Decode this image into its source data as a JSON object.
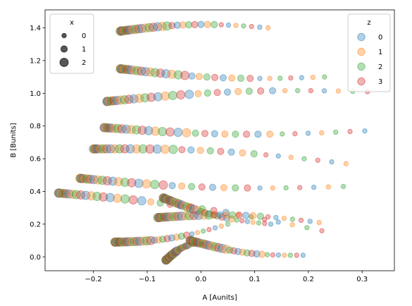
{
  "chart_data": {
    "type": "scatter",
    "title": "",
    "xlabel": "A [Aunits]",
    "ylabel": "B [Bunits]",
    "xlim": [
      -0.29,
      0.36
    ],
    "ylim": [
      -0.085,
      1.51
    ],
    "x_ticks": [
      -0.2,
      -0.1,
      0.0,
      0.1,
      0.2,
      0.3
    ],
    "x_tick_labels": [
      "−0.2",
      "−0.1",
      "0.0",
      "0.1",
      "0.2",
      "0.3"
    ],
    "y_ticks": [
      0.0,
      0.2,
      0.4,
      0.6,
      0.8,
      1.0,
      1.2,
      1.4
    ],
    "y_tick_labels": [
      "0.0",
      "0.2",
      "0.4",
      "0.6",
      "0.8",
      "1.0",
      "1.2",
      "1.4"
    ],
    "grid": false,
    "alpha": 0.35,
    "size_legend": {
      "title": "x",
      "placement": "top-left",
      "entries": [
        {
          "label": "0",
          "size": 0
        },
        {
          "label": "1",
          "size": 1
        },
        {
          "label": "2",
          "size": 2
        }
      ]
    },
    "color_legend": {
      "title": "z",
      "placement": "top-right",
      "entries": [
        {
          "label": "0",
          "color": "#1f77b4"
        },
        {
          "label": "1",
          "color": "#ff7f0e"
        },
        {
          "label": "2",
          "color": "#2ca02c"
        },
        {
          "label": "3",
          "color": "#d62728"
        }
      ]
    },
    "curves": [
      {
        "y_left": 1.38,
        "x_left": -0.15,
        "x_right": 0.125,
        "y_right": 1.4
      },
      {
        "y_left": 1.15,
        "x_left": -0.15,
        "x_right": 0.23,
        "y_right": 1.1
      },
      {
        "y_left": 0.95,
        "x_left": -0.175,
        "x_right": 0.31,
        "y_right": 1.01
      },
      {
        "y_left": 0.79,
        "x_left": -0.18,
        "x_right": 0.305,
        "y_right": 0.77
      },
      {
        "y_left": 0.66,
        "x_left": -0.2,
        "x_right": 0.27,
        "y_right": 0.57
      },
      {
        "y_left": 0.48,
        "x_left": -0.225,
        "x_right": 0.265,
        "y_right": 0.43
      },
      {
        "y_left": 0.39,
        "x_left": -0.265,
        "x_right": 0.225,
        "y_right": 0.16
      },
      {
        "y_left": 0.36,
        "x_left": -0.07,
        "x_right": 0.13,
        "y_right": 0.2
      },
      {
        "y_left": 0.24,
        "x_left": -0.08,
        "x_right": 0.22,
        "y_right": 0.21
      },
      {
        "y_left": 0.09,
        "x_left": -0.16,
        "x_right": 0.05,
        "y_right": 0.2
      },
      {
        "y_left": -0.02,
        "x_left": -0.065,
        "x_right": 0.0,
        "y_right": 0.08
      },
      {
        "y_left": 0.1,
        "x_left": -0.02,
        "x_right": 0.19,
        "y_right": 0.01
      }
    ]
  }
}
